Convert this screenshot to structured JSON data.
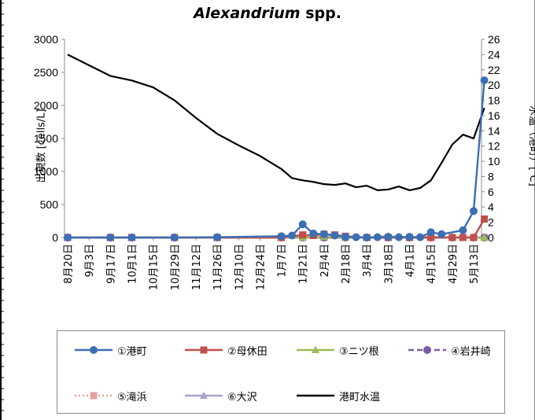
{
  "chart_data": {
    "type": "line",
    "title_italic": "Alexandrium",
    "title_rest": " spp.",
    "ylabel_left": "出現数 [cells/L]",
    "ylabel_right": "水温（港町）[℃]",
    "ylim_left": [
      0,
      3000
    ],
    "ylim_right": [
      0,
      26
    ],
    "y_ticks_left": [
      "0",
      "500",
      "1000",
      "1500",
      "2000",
      "2500",
      "3000"
    ],
    "y_ticks_right": [
      "0",
      "2",
      "4",
      "6",
      "8",
      "10",
      "12",
      "14",
      "16",
      "18",
      "20",
      "22",
      "24",
      "26"
    ],
    "x_ticks": [
      "8月20日",
      "9月3日",
      "9月17日",
      "10月1日",
      "10月15日",
      "10月29日",
      "11月12日",
      "11月26日",
      "12月10日",
      "12月24日",
      "1月7日",
      "1月21日",
      "2月4日",
      "2月18日",
      "3月4日",
      "3月18日",
      "4月1日",
      "4月15日",
      "4月29日",
      "5月13日"
    ],
    "grid": false,
    "legend_position": "bottom",
    "series": [
      {
        "name": "①港町",
        "color": "#3c6eb4",
        "marker": "circle",
        "dash": "solid",
        "axis": "left",
        "x": [
          0,
          2,
          3,
          5,
          7,
          10,
          10.5,
          11,
          11.5,
          12,
          12.5,
          13,
          13.5,
          14,
          14.5,
          15,
          15.5,
          16,
          16.5,
          17,
          17.5,
          18.5,
          19,
          19.5
        ],
        "values": [
          0,
          0,
          0,
          0,
          5,
          20,
          30,
          200,
          60,
          50,
          30,
          10,
          5,
          0,
          5,
          10,
          5,
          10,
          5,
          80,
          50,
          110,
          400,
          2380
        ]
      },
      {
        "name": "②母休田",
        "color": "#c0504d",
        "marker": "square",
        "dash": "solid",
        "axis": "left",
        "x": [
          0,
          2,
          3,
          5,
          7,
          10,
          11,
          11.5,
          12,
          12.5,
          13,
          14,
          15,
          16,
          17,
          18,
          18.5,
          19,
          19.5
        ],
        "values": [
          0,
          0,
          0,
          0,
          0,
          0,
          40,
          30,
          50,
          40,
          20,
          0,
          0,
          0,
          0,
          0,
          0,
          0,
          280
        ]
      },
      {
        "name": "③ニツ根",
        "color": "#9bbb59",
        "marker": "triangle",
        "dash": "solid",
        "axis": "left",
        "x": [
          0,
          2,
          3,
          5,
          7,
          10,
          11,
          12,
          13,
          14,
          15,
          16,
          17,
          18,
          19,
          19.5
        ],
        "values": [
          0,
          0,
          0,
          0,
          0,
          0,
          0,
          10,
          0,
          0,
          20,
          0,
          10,
          0,
          0,
          0
        ]
      },
      {
        "name": "④岩井崎",
        "color": "#7b5ea7",
        "marker": "circle",
        "dash": "dash",
        "axis": "left",
        "x": [
          0,
          2,
          3,
          5,
          7,
          10,
          11,
          12,
          13,
          14,
          15,
          16,
          17,
          18,
          19,
          19.5
        ],
        "values": [
          0,
          0,
          0,
          0,
          0,
          0,
          0,
          0,
          0,
          0,
          0,
          0,
          0,
          0,
          0,
          0
        ]
      },
      {
        "name": "⑤滝浜",
        "color": "#e8a0a0",
        "marker": "square",
        "dash": "dot",
        "axis": "left",
        "x": [
          0,
          2,
          3,
          5,
          7,
          10,
          11,
          12,
          13,
          14,
          15,
          16,
          17,
          18,
          19,
          19.5
        ],
        "values": [
          0,
          0,
          0,
          0,
          0,
          0,
          0,
          0,
          0,
          0,
          0,
          0,
          0,
          0,
          0,
          0
        ]
      },
      {
        "name": "⑥大沢",
        "color": "#a9a2d6",
        "marker": "triangle",
        "dash": "solid",
        "axis": "left",
        "x": [
          0,
          2,
          3,
          5,
          7,
          10,
          11,
          12,
          13,
          14,
          15,
          16,
          17,
          18,
          19,
          19.5
        ],
        "values": [
          0,
          0,
          0,
          0,
          0,
          0,
          0,
          0,
          0,
          0,
          0,
          0,
          0,
          0,
          0,
          0
        ]
      },
      {
        "name": "港町水温",
        "color": "#000000",
        "marker": "none",
        "dash": "solid",
        "axis": "right",
        "x": [
          0,
          1,
          2,
          2.5,
          3,
          4,
          5,
          6,
          7,
          8,
          9,
          10,
          10.5,
          11,
          11.5,
          12,
          12.5,
          13,
          13.5,
          14,
          14.5,
          15,
          15.5,
          16,
          16.5,
          17,
          17.5,
          18,
          18.5,
          19,
          19.5
        ],
        "values": [
          24,
          22.6,
          21.2,
          20.9,
          20.6,
          19.7,
          18,
          15.7,
          13.6,
          12.1,
          10.7,
          9,
          7.8,
          7.5,
          7.3,
          7.0,
          6.9,
          7.1,
          6.6,
          6.8,
          6.2,
          6.3,
          6.7,
          6.2,
          6.5,
          7.5,
          9.8,
          12.2,
          13.5,
          13.0,
          17.0
        ]
      }
    ]
  }
}
